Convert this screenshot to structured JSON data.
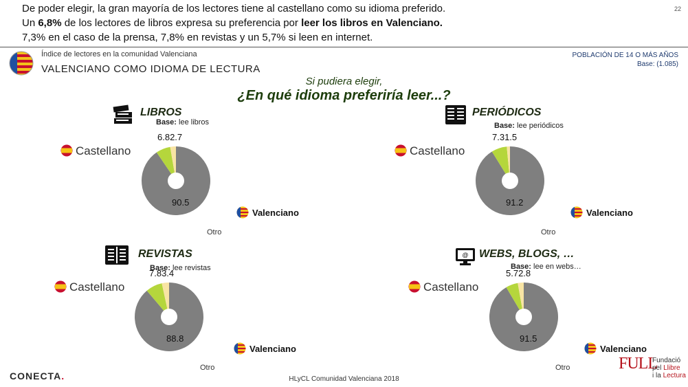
{
  "intro": {
    "l1": "De poder elegir, la gran mayoría de los lectores tiene al castellano como su idioma preferido.",
    "l2a": "Un ",
    "l2b": "6,8%",
    "l2c": " de los lectores de libros expresa su preferencia por ",
    "l2d": "leer los libros en Valenciano.",
    "l3": "7,3% en el caso de la prensa, 7,8% en revistas y un 5,7% si leen en internet."
  },
  "page_number": "22",
  "header": {
    "small": "Índice de lectores en la comunidad Valenciana",
    "title": "VALENCIANO COMO IDIOMA DE LECTURA",
    "population": "POBLACIÓN DE 14 O MÁS AÑOS",
    "base": "Base: (1.085)"
  },
  "question": {
    "line1": "Si pudiera elegir,",
    "line2": "¿En qué idioma preferiría leer...?"
  },
  "legend": {
    "castellano": "Castellano",
    "valenciano": "Valenciano",
    "otro": "Otro",
    "base_prefix": "Base:"
  },
  "colors": {
    "castellano": "#7f7f7f",
    "valenciano": "#b5d63c",
    "otro": "#f8e4a3",
    "title_green": "#1d3d0c"
  },
  "panels": [
    {
      "title": "LIBROS",
      "icon": "books-icon",
      "base": "lee libros",
      "top_label": "6.82.7",
      "center_label": "90.5"
    },
    {
      "title": "PERIÓDICOS",
      "icon": "newspaper-icon",
      "base": "lee periódicos",
      "top_label": "7.31.5",
      "center_label": "91.2"
    },
    {
      "title": "REVISTAS",
      "icon": "magazine-icon",
      "base": "lee revistas",
      "top_label": "7.83.4",
      "center_label": "88.8"
    },
    {
      "title": "WEBS, BLOGS, …",
      "icon": "computer-icon",
      "base": "lee en webs…",
      "top_label": "5.72.8",
      "center_label": "91.5"
    }
  ],
  "chart_data": [
    {
      "type": "pie",
      "title": "LIBROS",
      "categories": [
        "Castellano",
        "Valenciano",
        "Otro"
      ],
      "values": [
        90.5,
        6.8,
        2.7
      ]
    },
    {
      "type": "pie",
      "title": "PERIÓDICOS",
      "categories": [
        "Castellano",
        "Valenciano",
        "Otro"
      ],
      "values": [
        91.2,
        7.3,
        1.5
      ]
    },
    {
      "type": "pie",
      "title": "REVISTAS",
      "categories": [
        "Castellano",
        "Valenciano",
        "Otro"
      ],
      "values": [
        88.8,
        7.8,
        3.4
      ]
    },
    {
      "type": "pie",
      "title": "WEBS, BLOGS, …",
      "categories": [
        "Castellano",
        "Valenciano",
        "Otro"
      ],
      "values": [
        91.5,
        5.7,
        2.8
      ]
    }
  ],
  "footer": {
    "center": "HLyCL Comunidad Valenciana 2018",
    "conecta": "CONECTA",
    "full": "FULL",
    "fund1": "Fundació",
    "fund2a": "pel ",
    "fund2b": "Llibre",
    "fund3a": "i la ",
    "fund3b": "Lectura"
  }
}
